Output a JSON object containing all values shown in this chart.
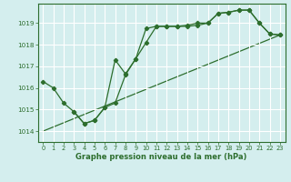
{
  "line1_x": [
    0,
    1,
    2,
    3,
    4,
    5,
    6,
    7,
    8,
    9,
    10,
    11,
    12,
    13,
    14,
    15,
    16,
    17,
    18,
    19,
    20,
    21,
    22,
    23
  ],
  "line1_y": [
    1016.3,
    1016.0,
    1015.3,
    1014.9,
    1014.35,
    1014.5,
    1015.1,
    1015.3,
    1016.6,
    1017.35,
    1018.1,
    1018.85,
    1018.85,
    1018.85,
    1018.85,
    1018.9,
    1019.0,
    1019.45,
    1019.5,
    1019.6,
    1019.6,
    1019.0,
    1018.5,
    1018.45
  ],
  "line2_x": [
    3,
    4,
    5,
    6,
    7,
    8,
    9,
    10,
    11,
    12,
    13,
    14,
    15,
    16,
    17,
    18,
    19,
    20,
    21,
    22,
    23
  ],
  "line2_y": [
    1014.9,
    1014.35,
    1014.5,
    1015.1,
    1017.3,
    1016.65,
    1017.35,
    1018.75,
    1018.85,
    1018.85,
    1018.85,
    1018.9,
    1019.0,
    1019.0,
    1019.45,
    1019.5,
    1019.6,
    1019.6,
    1019.0,
    1018.5,
    1018.45
  ],
  "line3_x": [
    0,
    23
  ],
  "line3_y": [
    1014.0,
    1018.45
  ],
  "line_color": "#2d6e2d",
  "bg_color": "#d4eeee",
  "grid_color": "#ffffff",
  "xlabel": "Graphe pression niveau de la mer (hPa)",
  "xlim": [
    -0.5,
    23.5
  ],
  "ylim": [
    1013.5,
    1019.9
  ],
  "yticks": [
    1014,
    1015,
    1016,
    1017,
    1018,
    1019
  ],
  "xticks": [
    0,
    1,
    2,
    3,
    4,
    5,
    6,
    7,
    8,
    9,
    10,
    11,
    12,
    13,
    14,
    15,
    16,
    17,
    18,
    19,
    20,
    21,
    22,
    23
  ]
}
